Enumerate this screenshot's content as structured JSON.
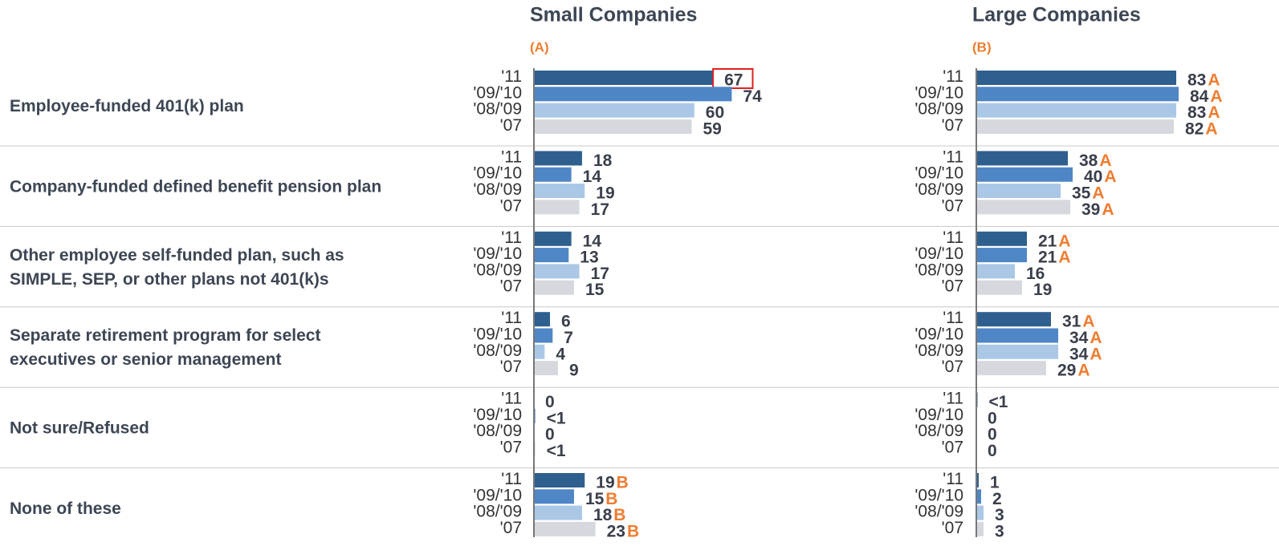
{
  "chart_data": {
    "type": "bar",
    "categories": [
      "Employee-funded 401(k) plan",
      "Company-funded defined benefit pension plan",
      "Other employee self-funded plan, such as\nSIMPLE, SEP, or other plans not 401(k)s",
      "Separate retirement program for select\nexecutives or senior management",
      "Not sure/Refused",
      "None of these"
    ],
    "panels": [
      {
        "title": "Small Companies",
        "subtitle": "(A)",
        "xlim": [
          0,
          100
        ],
        "highlight": [
          0,
          0
        ],
        "series": [
          {
            "name": "'11",
            "color": "#2e5f8f",
            "values": [
              67,
              18,
              14,
              6,
              0,
              19
            ],
            "significance": [
              null,
              null,
              null,
              null,
              null,
              "B"
            ]
          },
          {
            "name": "'09/'10",
            "color": "#4f86c6",
            "values": [
              74,
              14,
              13,
              7,
              0.5,
              15
            ],
            "value_labels": [
              null,
              null,
              null,
              null,
              "<1",
              null
            ],
            "significance": [
              null,
              null,
              null,
              null,
              null,
              "B"
            ]
          },
          {
            "name": "'08/'09",
            "color": "#aac8e6",
            "values": [
              60,
              19,
              17,
              4,
              0,
              18
            ],
            "significance": [
              null,
              null,
              null,
              null,
              null,
              "B"
            ]
          },
          {
            "name": "'07",
            "color": "#d5d9de",
            "values": [
              59,
              17,
              15,
              9,
              0.5,
              23
            ],
            "value_labels": [
              null,
              null,
              null,
              null,
              "<1",
              null
            ],
            "significance": [
              null,
              null,
              null,
              null,
              null,
              "B"
            ]
          }
        ]
      },
      {
        "title": "Large Companies",
        "subtitle": "(B)",
        "xlim": [
          0,
          100
        ],
        "series": [
          {
            "name": "'11",
            "color": "#2e5f8f",
            "values": [
              83,
              38,
              21,
              31,
              0.5,
              1
            ],
            "value_labels": [
              null,
              null,
              null,
              null,
              "<1",
              null
            ],
            "significance": [
              "A",
              "A",
              "A",
              "A",
              null,
              null
            ]
          },
          {
            "name": "'09/'10",
            "color": "#4f86c6",
            "values": [
              84,
              40,
              21,
              34,
              0,
              2
            ],
            "significance": [
              "A",
              "A",
              "A",
              "A",
              null,
              null
            ]
          },
          {
            "name": "'08/'09",
            "color": "#aac8e6",
            "values": [
              83,
              35,
              16,
              34,
              0,
              3
            ],
            "significance": [
              "A",
              "A",
              null,
              "A",
              null,
              null
            ]
          },
          {
            "name": "'07",
            "color": "#d5d9de",
            "values": [
              82,
              39,
              19,
              29,
              0,
              3
            ],
            "significance": [
              "A",
              "A",
              null,
              "A",
              null,
              null
            ]
          }
        ]
      }
    ]
  }
}
